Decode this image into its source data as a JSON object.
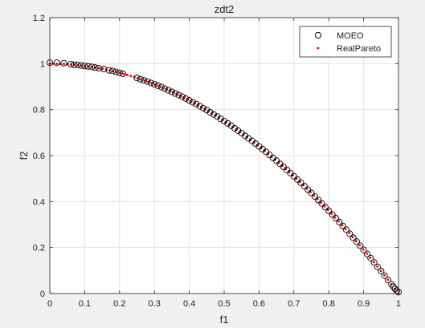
{
  "chart_data": {
    "type": "scatter",
    "title": "zdt2",
    "xlabel": "f1",
    "ylabel": "f2",
    "xlim": [
      0,
      1
    ],
    "ylim": [
      0,
      1.2
    ],
    "xticks": [
      0,
      0.1,
      0.2,
      0.3,
      0.4,
      0.5,
      0.6,
      0.7,
      0.8,
      0.9,
      1
    ],
    "yticks": [
      0,
      0.2,
      0.4,
      0.6,
      0.8,
      1,
      1.2
    ],
    "xtick_labels": [
      "0",
      "0.1",
      "0.2",
      "0.3",
      "0.4",
      "0.5",
      "0.6",
      "0.7",
      "0.8",
      "0.9",
      "1"
    ],
    "ytick_labels": [
      "0",
      "0.2",
      "0.4",
      "0.6",
      "0.8",
      "1",
      "1.2"
    ],
    "grid": true,
    "legend_position": "top-right",
    "series": [
      {
        "name": "MOEO",
        "marker": "open-circle",
        "color": "#000000",
        "x": [
          0.0,
          0.02,
          0.04,
          0.06,
          0.07,
          0.08,
          0.09,
          0.1,
          0.11,
          0.12,
          0.13,
          0.14,
          0.155,
          0.17,
          0.18,
          0.19,
          0.2,
          0.21,
          0.25,
          0.26,
          0.27,
          0.28,
          0.29,
          0.3,
          0.31,
          0.32,
          0.33,
          0.34,
          0.35,
          0.36,
          0.37,
          0.38,
          0.39,
          0.4,
          0.41,
          0.42,
          0.43,
          0.44,
          0.45,
          0.46,
          0.47,
          0.48,
          0.49,
          0.5,
          0.51,
          0.52,
          0.53,
          0.54,
          0.55,
          0.56,
          0.57,
          0.58,
          0.59,
          0.6,
          0.61,
          0.62,
          0.63,
          0.64,
          0.65,
          0.66,
          0.67,
          0.68,
          0.69,
          0.7,
          0.71,
          0.72,
          0.73,
          0.74,
          0.75,
          0.76,
          0.77,
          0.78,
          0.79,
          0.8,
          0.81,
          0.82,
          0.83,
          0.84,
          0.85,
          0.86,
          0.87,
          0.88,
          0.89,
          0.9,
          0.91,
          0.92,
          0.93,
          0.94,
          0.95,
          0.96,
          0.97,
          0.98,
          0.985,
          0.99,
          0.995,
          1.0
        ],
        "y": [
          1.004,
          1.004,
          1.002,
          0.998,
          0.995,
          0.994,
          0.992,
          0.99,
          0.988,
          0.986,
          0.983,
          0.98,
          0.976,
          0.971,
          0.968,
          0.964,
          0.96,
          0.956,
          0.938,
          0.932,
          0.927,
          0.922,
          0.916,
          0.91,
          0.904,
          0.898,
          0.891,
          0.884,
          0.877,
          0.87,
          0.863,
          0.856,
          0.848,
          0.84,
          0.832,
          0.824,
          0.815,
          0.806,
          0.798,
          0.788,
          0.779,
          0.77,
          0.76,
          0.75,
          0.74,
          0.73,
          0.719,
          0.708,
          0.698,
          0.686,
          0.675,
          0.664,
          0.652,
          0.64,
          0.628,
          0.616,
          0.603,
          0.59,
          0.578,
          0.564,
          0.551,
          0.538,
          0.524,
          0.51,
          0.496,
          0.482,
          0.467,
          0.452,
          0.438,
          0.422,
          0.407,
          0.392,
          0.376,
          0.36,
          0.344,
          0.328,
          0.311,
          0.294,
          0.278,
          0.26,
          0.243,
          0.226,
          0.208,
          0.19,
          0.172,
          0.154,
          0.135,
          0.116,
          0.098,
          0.078,
          0.059,
          0.04,
          0.03,
          0.02,
          0.012,
          0.006
        ]
      },
      {
        "name": "RealPareto",
        "marker": "dot",
        "color": "#ff0000",
        "x_range": [
          0,
          1
        ],
        "count": 100,
        "function": "1 - x^2"
      }
    ]
  }
}
